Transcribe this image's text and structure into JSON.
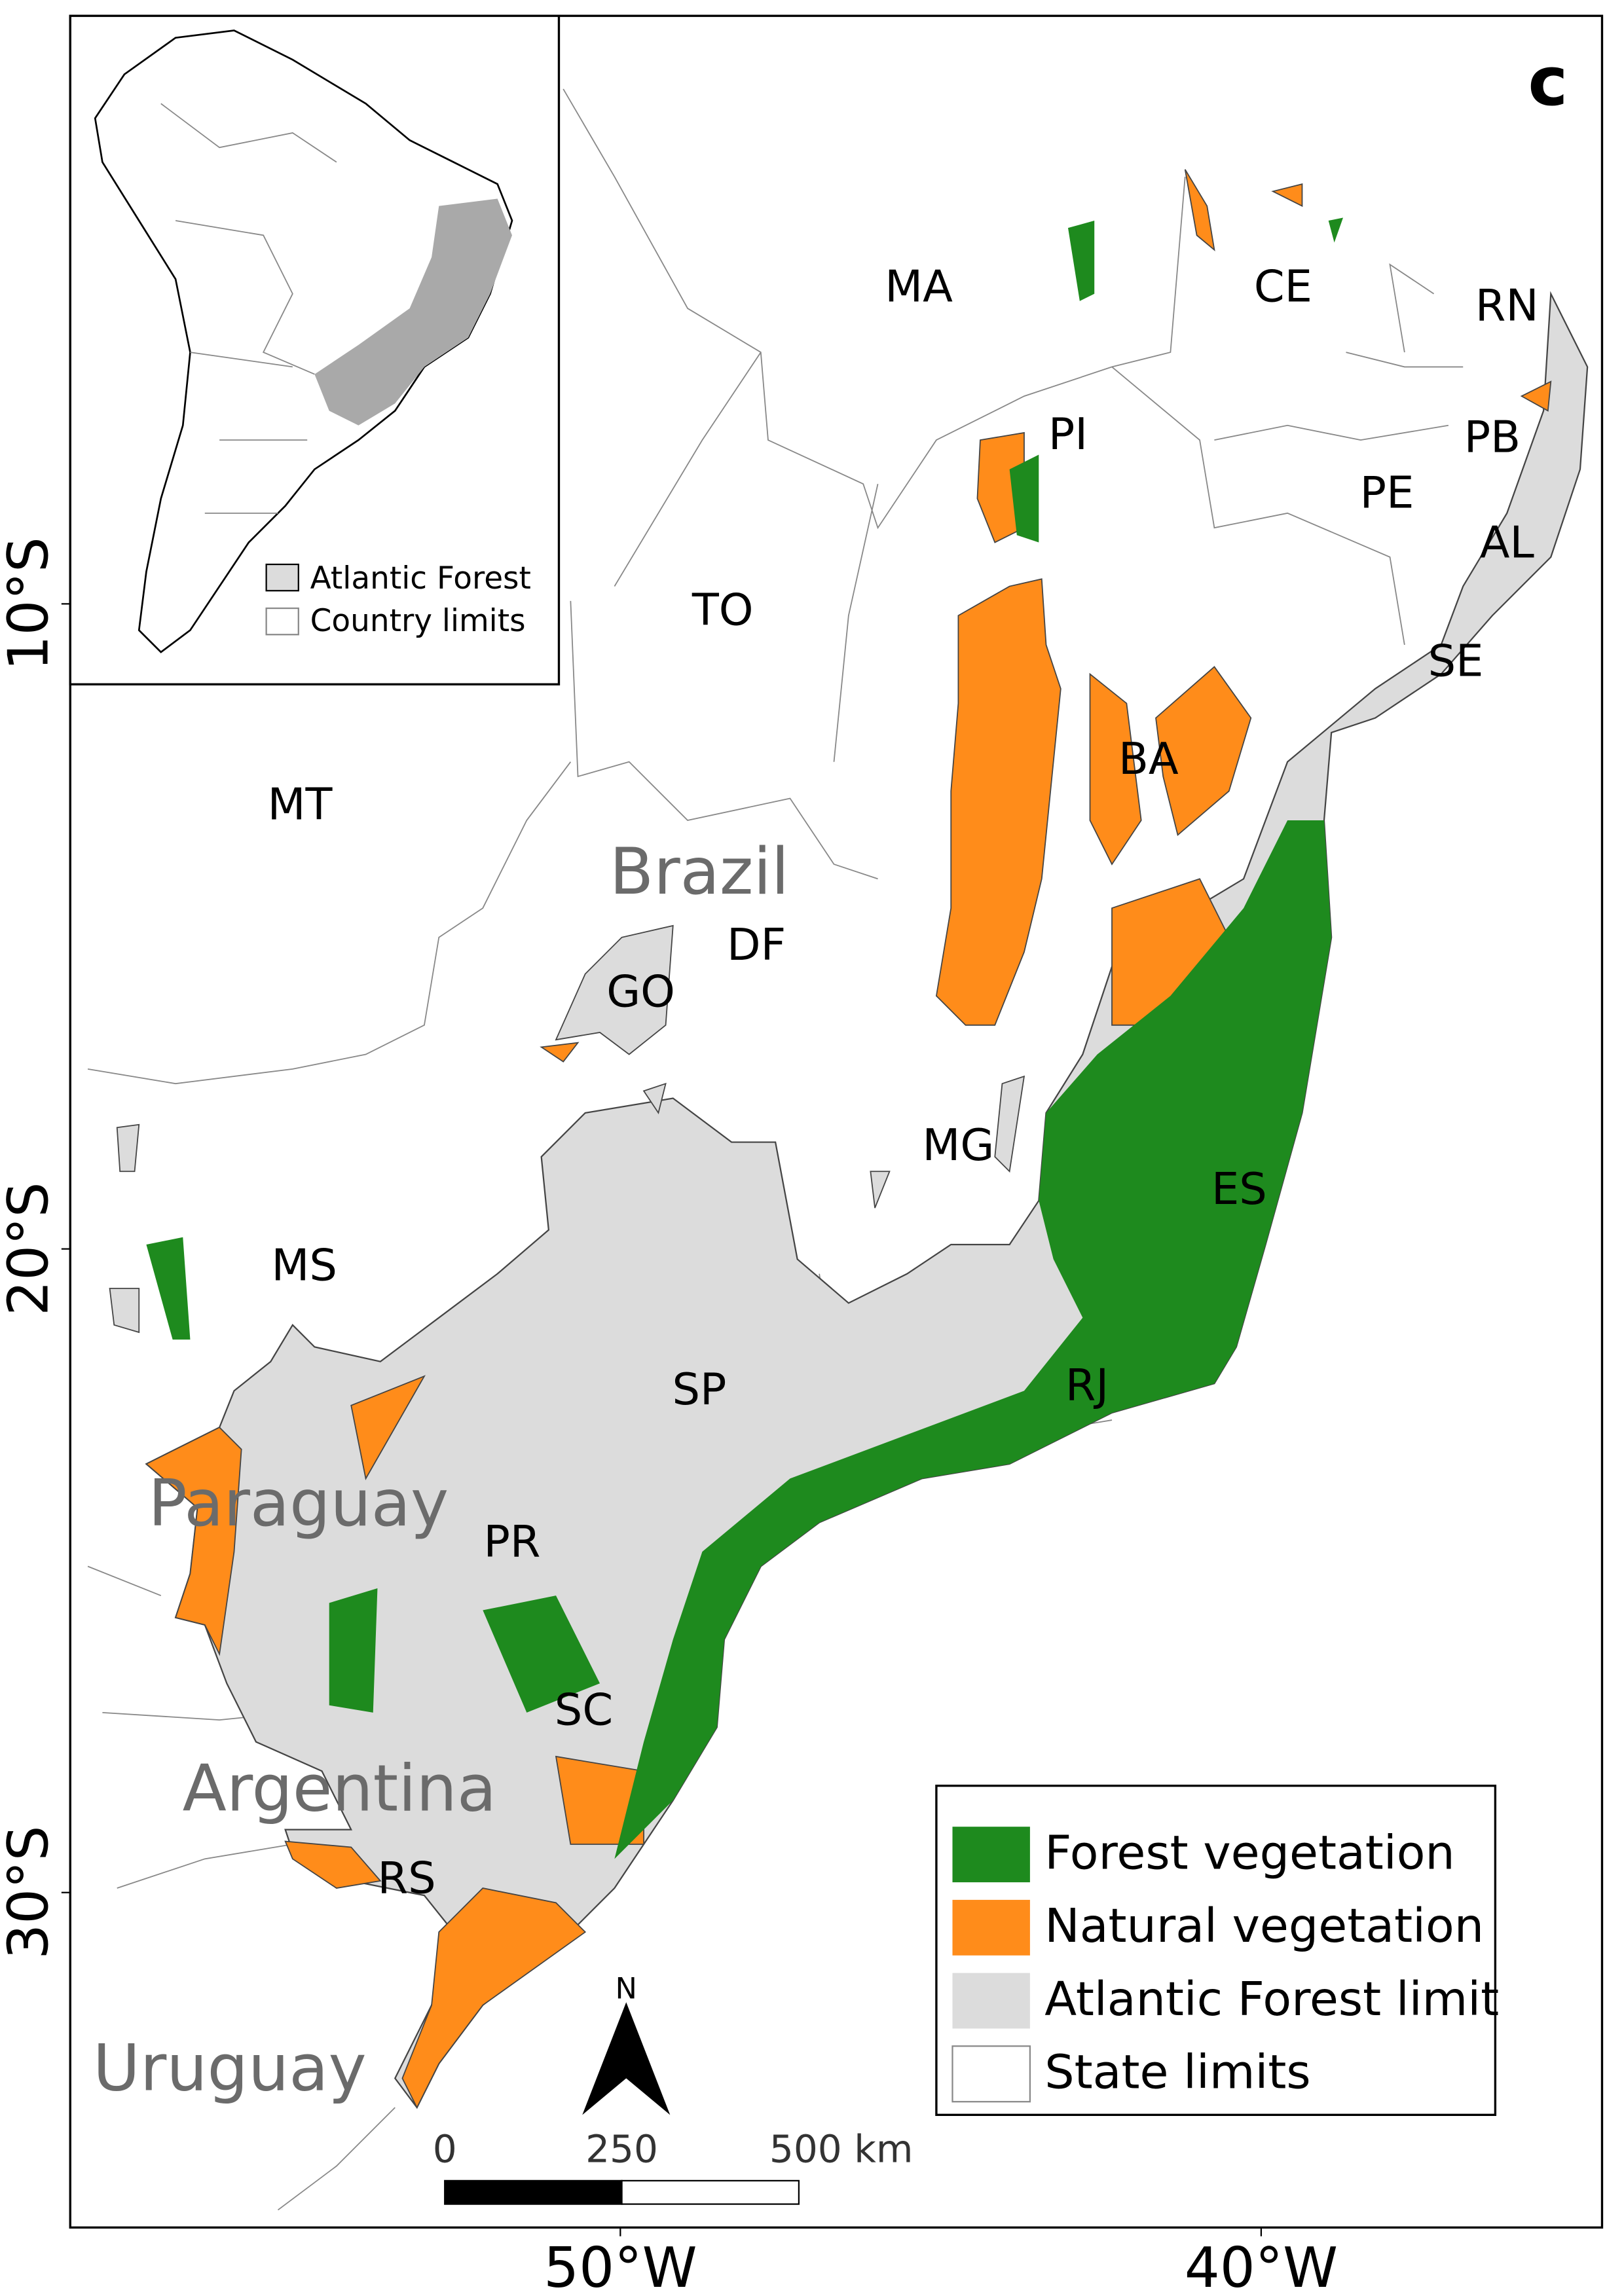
{
  "panel_label": "c",
  "state_labels": [
    "MA",
    "CE",
    "RN",
    "PI",
    "PB",
    "PE",
    "AL",
    "TO",
    "SE",
    "BA",
    "MT",
    "DF",
    "GO",
    "MG",
    "ES",
    "MS",
    "SP",
    "RJ",
    "PR",
    "SC",
    "RS"
  ],
  "country_labels": [
    "Brazil",
    "Paraguay",
    "Argentina",
    "Uruguay"
  ],
  "axes": {
    "latitude_labels": [
      "10°S",
      "20°S",
      "30°S"
    ],
    "longitude_labels": [
      "50°W",
      "40°W"
    ]
  },
  "inset": {
    "legend": [
      "Atlantic Forest",
      "Country limits"
    ]
  },
  "legend": [
    {
      "label": "Forest vegetation",
      "color": "#1e8a1e"
    },
    {
      "label": "Natural vegetation",
      "color": "#ff8c1a"
    },
    {
      "label": "Atlantic Forest limit",
      "color": "#dcdcdc"
    },
    {
      "label": "State limits",
      "color": "#ffffff"
    }
  ],
  "north_arrow": "N",
  "scale_bar": {
    "labels": [
      "0",
      "250",
      "500 km"
    ]
  }
}
